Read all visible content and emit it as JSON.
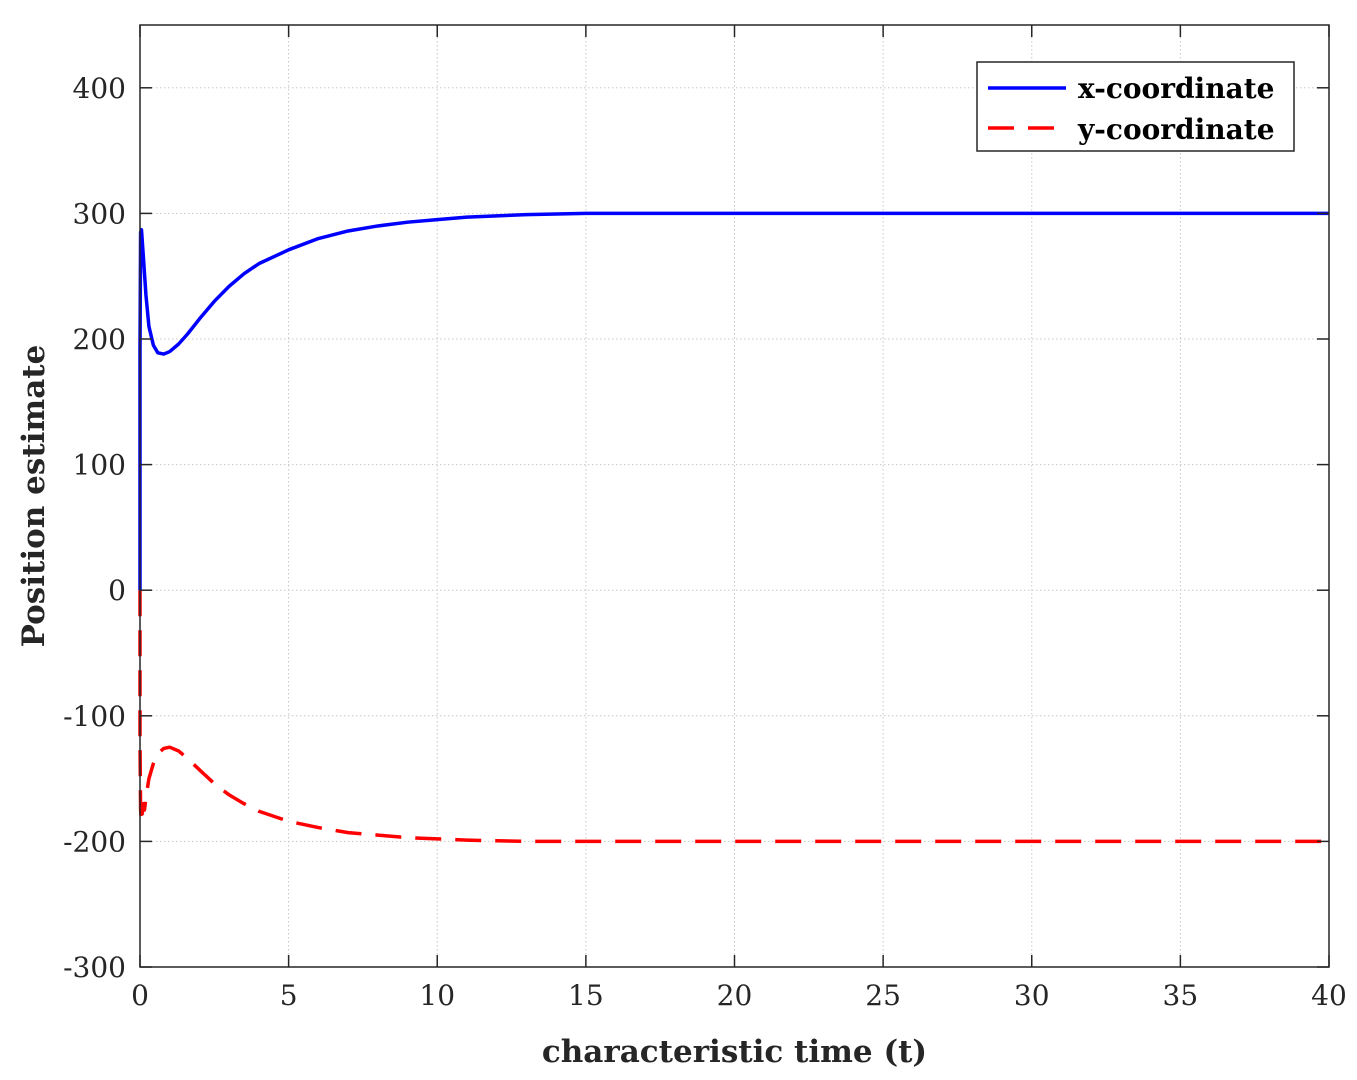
{
  "chart_data": {
    "type": "line",
    "title": "",
    "xlabel": "characteristic time (t)",
    "ylabel": "Position estimate",
    "xlim": [
      0,
      40
    ],
    "ylim": [
      -300,
      450
    ],
    "xticks": [
      0,
      5,
      10,
      15,
      20,
      25,
      30,
      35,
      40
    ],
    "yticks": [
      -300,
      -200,
      -100,
      0,
      100,
      200,
      300,
      400
    ],
    "grid": true,
    "legend_position": "top-right",
    "series": [
      {
        "name": "x-coordinate",
        "color": "#0000ff",
        "style": "solid",
        "x": [
          0,
          0,
          0.02,
          0.05,
          0.1,
          0.2,
          0.3,
          0.45,
          0.6,
          0.8,
          1.0,
          1.3,
          1.6,
          2.0,
          2.5,
          3.0,
          3.5,
          4.0,
          5.0,
          6.0,
          7.0,
          8.0,
          9.0,
          10.0,
          11.0,
          12.0,
          13.0,
          14.0,
          15.0,
          17.0,
          20.0,
          25.0,
          30.0,
          35.0,
          40.0
        ],
        "y": [
          0,
          190,
          285,
          287,
          270,
          235,
          210,
          195,
          189,
          188,
          190,
          196,
          204,
          216,
          230,
          242,
          252,
          260,
          271,
          280,
          286,
          290,
          293,
          295,
          297,
          298,
          299,
          299.5,
          300,
          300,
          300,
          300,
          300,
          300,
          300
        ]
      },
      {
        "name": "y-coordinate",
        "color": "#ff0000",
        "style": "dashed",
        "x": [
          0,
          0,
          0.02,
          0.05,
          0.1,
          0.15,
          0.2,
          0.3,
          0.45,
          0.6,
          0.8,
          1.0,
          1.3,
          1.6,
          2.0,
          2.5,
          3.0,
          3.5,
          4.0,
          5.0,
          6.0,
          7.0,
          8.0,
          9.0,
          10.0,
          11.0,
          12.0,
          13.0,
          14.0,
          15.0,
          17.0,
          20.0,
          25.0,
          30.0,
          35.0,
          40.0
        ],
        "y": [
          0,
          -120,
          -175,
          -185,
          -170,
          -175,
          -165,
          -150,
          -138,
          -130,
          -126,
          -125,
          -128,
          -134,
          -143,
          -154,
          -163,
          -170,
          -176,
          -184,
          -189,
          -193,
          -195,
          -197,
          -198,
          -199,
          -199.5,
          -200,
          -200,
          -200,
          -200,
          -200,
          -200,
          -200,
          -200,
          -200
        ]
      }
    ]
  }
}
